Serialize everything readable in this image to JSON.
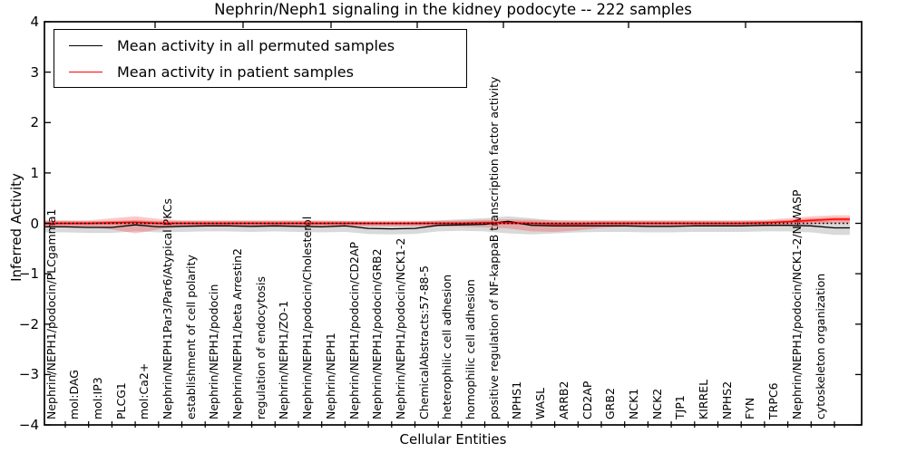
{
  "chart_data": {
    "type": "line",
    "title": "Nephrin/Neph1 signaling in the kidney podocyte -- 222 samples",
    "xlabel": "Cellular Entities",
    "ylabel": "Inferred Activity",
    "ylim": [
      -4,
      4
    ],
    "ytick_labels": [
      "4",
      "3",
      "2",
      "1",
      "0",
      "−1",
      "−2",
      "−3",
      "−4"
    ],
    "yticks": [
      4,
      3,
      2,
      1,
      0,
      -1,
      -2,
      -3,
      -4
    ],
    "grid": false,
    "legend_position": "upper left",
    "categories": [
      "Nephrin/NEPH1/podocin/PLCgamma1",
      "mol:DAG",
      "mol:IP3",
      "PLCG1",
      "mol:Ca2+",
      "Nephrin/NEPH1Par3/Par6/Atypical PKCs",
      "establishment of cell polarity",
      "Nephrin/NEPH1/podocin",
      "Nephrin/NEPH1/beta Arrestin2",
      "regulation of endocytosis",
      "Nephrin/NEPH1/ZO-1",
      "Nephrin/NEPH1/podocin/Cholesterol",
      "Nephrin/NEPH1",
      "Nephrin/NEPH1/podocin/CD2AP",
      "Nephrin/NEPH1/podocin/GRB2",
      "Nephrin/NEPH1/podocin/NCK1-2",
      "ChemicalAbstracts:57-88-5",
      "heterophilic cell adhesion",
      "homophilic cell adhesion",
      "positive regulation of NF-kappaB transcription factor activity",
      "NPHS1",
      "WASL",
      "ARRB2",
      "CD2AP",
      "GRB2",
      "NCK1",
      "NCK2",
      "TJP1",
      "KIRREL",
      "NPHS2",
      "FYN",
      "TRPC6",
      "Nephrin/NEPH1/podocin/NCK1-2/N-WASP",
      "cytoskeleton organization"
    ],
    "series": [
      {
        "name": "Mean activity in all permuted samples",
        "color": "#000000",
        "values": [
          -0.07,
          -0.08,
          -0.08,
          -0.03,
          -0.07,
          -0.06,
          -0.05,
          -0.05,
          -0.06,
          -0.05,
          -0.06,
          -0.07,
          -0.05,
          -0.1,
          -0.11,
          -0.1,
          -0.04,
          -0.03,
          -0.02,
          0.04,
          -0.04,
          -0.05,
          -0.05,
          -0.05,
          -0.05,
          -0.06,
          -0.06,
          -0.05,
          -0.05,
          -0.05,
          -0.04,
          -0.04,
          -0.05,
          -0.09
        ],
        "band": {
          "color": "rgba(0,0,0,0.15)",
          "upper": [
            0.05,
            0.04,
            0.04,
            0.06,
            0.05,
            0.05,
            0.05,
            0.05,
            0.05,
            0.05,
            0.05,
            0.04,
            0.05,
            0.02,
            0.01,
            0.02,
            0.06,
            0.08,
            0.1,
            0.14,
            0.1,
            0.06,
            0.05,
            0.05,
            0.05,
            0.05,
            0.05,
            0.05,
            0.05,
            0.05,
            0.05,
            0.05,
            0.05,
            0.04
          ],
          "lower": [
            -0.18,
            -0.19,
            -0.19,
            -0.16,
            -0.18,
            -0.17,
            -0.16,
            -0.16,
            -0.17,
            -0.16,
            -0.17,
            -0.18,
            -0.17,
            -0.21,
            -0.22,
            -0.21,
            -0.16,
            -0.15,
            -0.16,
            -0.2,
            -0.22,
            -0.2,
            -0.18,
            -0.17,
            -0.17,
            -0.18,
            -0.18,
            -0.17,
            -0.17,
            -0.17,
            -0.16,
            -0.16,
            -0.18,
            -0.23
          ]
        }
      },
      {
        "name": "Mean activity in patient samples",
        "color": "#ff0000",
        "values": [
          0,
          0,
          0.01,
          0.02,
          0,
          0,
          0,
          0,
          0,
          0,
          0,
          0,
          0,
          0,
          0,
          0,
          0,
          0,
          0.01,
          0.01,
          0,
          -0.01,
          -0.01,
          0,
          0,
          0,
          0,
          0,
          0,
          0,
          0.01,
          0.03,
          0.06,
          0.08
        ],
        "band": {
          "color": "rgba(255,0,0,0.22)",
          "upper": [
            0.06,
            0.06,
            0.1,
            0.14,
            0.09,
            0.06,
            0.06,
            0.06,
            0.06,
            0.06,
            0.06,
            0.06,
            0.05,
            0.05,
            0.05,
            0.05,
            0.05,
            0.06,
            0.07,
            0.08,
            0.07,
            0.06,
            0.06,
            0.06,
            0.06,
            0.06,
            0.06,
            0.06,
            0.06,
            0.06,
            0.07,
            0.1,
            0.14,
            0.16
          ],
          "lower": [
            -0.07,
            -0.07,
            -0.12,
            -0.2,
            -0.12,
            -0.07,
            -0.07,
            -0.07,
            -0.07,
            -0.07,
            -0.07,
            -0.07,
            -0.06,
            -0.06,
            -0.06,
            -0.06,
            -0.06,
            -0.07,
            -0.08,
            -0.1,
            -0.16,
            -0.17,
            -0.14,
            -0.09,
            -0.07,
            -0.07,
            -0.06,
            -0.06,
            -0.06,
            -0.06,
            -0.06,
            -0.04,
            -0.02,
            0.0
          ]
        }
      }
    ],
    "zero_line": {
      "value": 0,
      "style": "dotted",
      "color": "#000000"
    }
  },
  "legend": {
    "items": [
      {
        "label": "Mean activity in all permuted samples",
        "color": "#000000"
      },
      {
        "label": "Mean activity in patient samples",
        "color": "#ff0000"
      }
    ]
  }
}
